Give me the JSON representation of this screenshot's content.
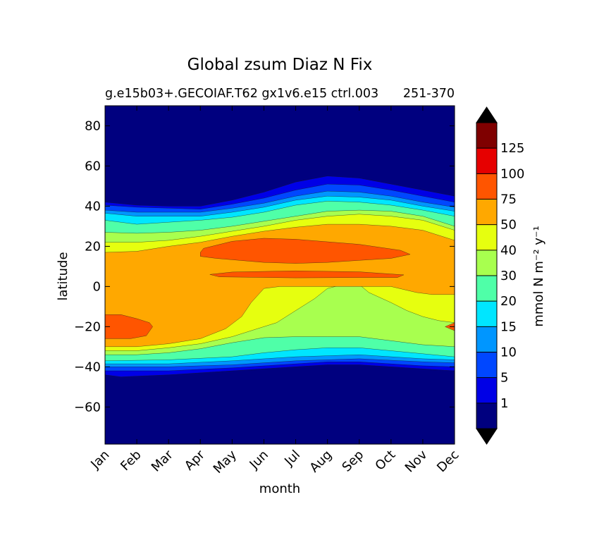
{
  "chart_data": {
    "type": "heatmap",
    "subtype": "filled-contour",
    "title": "Global zsum Diaz N Fix",
    "subtitle_left": "g.e15b03+.GECOIAF.T62 gx1v6.e15 ctrl.003",
    "subtitle_right": "251-370",
    "xlabel": "month",
    "ylabel": "latitude",
    "x_tick_labels": [
      "Jan",
      "Feb",
      "Mar",
      "Apr",
      "May",
      "Jun",
      "Jul",
      "Aug",
      "Sep",
      "Oct",
      "Nov",
      "Dec"
    ],
    "x_tick_values": [
      1,
      2,
      3,
      4,
      5,
      6,
      7,
      8,
      9,
      10,
      11,
      12
    ],
    "xlim": [
      1,
      12
    ],
    "y_tick_values": [
      -60,
      -40,
      -20,
      0,
      20,
      40,
      60,
      80
    ],
    "y_tick_labels": [
      "−60",
      "−40",
      "−20",
      "0",
      "20",
      "40",
      "60",
      "80"
    ],
    "ylim": [
      -78.5,
      90
    ],
    "colorbar": {
      "label": "mmol N m⁻² y⁻¹",
      "boundaries": [
        0,
        1,
        5,
        10,
        15,
        20,
        30,
        40,
        50,
        75,
        100,
        125,
        150
      ],
      "tick_labels": [
        "1",
        "5",
        "10",
        "15",
        "20",
        "30",
        "40",
        "50",
        "75",
        "100",
        "125"
      ],
      "colors": [
        "#00007f",
        "#0000e6",
        "#0047ff",
        "#0096ff",
        "#00e6ff",
        "#4fffa8",
        "#a8ff4f",
        "#e6ff0f",
        "#ffa800",
        "#ff5500",
        "#e60000",
        "#7f0000"
      ],
      "extend": "both",
      "under_color": "#000000",
      "over_color": "#000000"
    },
    "level_polygons": [
      {
        "level": 1,
        "points": [
          [
            1,
            -44
          ],
          [
            1.5,
            -45
          ],
          [
            3,
            -44
          ],
          [
            5,
            -42
          ],
          [
            7,
            -40
          ],
          [
            8,
            -39
          ],
          [
            9,
            -39
          ],
          [
            10,
            -40
          ],
          [
            11,
            -41
          ],
          [
            12,
            -42
          ],
          [
            12,
            45
          ],
          [
            11,
            48
          ],
          [
            10,
            51
          ],
          [
            9,
            54
          ],
          [
            8,
            55
          ],
          [
            7,
            52
          ],
          [
            6,
            47
          ],
          [
            5,
            43
          ],
          [
            4,
            40
          ],
          [
            3,
            40
          ],
          [
            2,
            40.5
          ],
          [
            1,
            42
          ]
        ]
      },
      {
        "level": 5,
        "points": [
          [
            1,
            -42
          ],
          [
            3,
            -42
          ],
          [
            5,
            -40.5
          ],
          [
            7,
            -38.5
          ],
          [
            8,
            -37.5
          ],
          [
            9,
            -37.5
          ],
          [
            10,
            -38.5
          ],
          [
            11,
            -39.5
          ],
          [
            12,
            -40
          ],
          [
            12,
            42
          ],
          [
            11,
            45
          ],
          [
            10,
            48
          ],
          [
            9,
            50.5
          ],
          [
            8,
            51
          ],
          [
            7,
            48
          ],
          [
            6,
            44
          ],
          [
            5,
            41
          ],
          [
            4,
            38.5
          ],
          [
            3,
            39
          ],
          [
            2,
            39.5
          ],
          [
            1,
            40.5
          ]
        ]
      },
      {
        "level": 10,
        "points": [
          [
            1,
            -40
          ],
          [
            3,
            -40
          ],
          [
            5,
            -39
          ],
          [
            7,
            -37
          ],
          [
            9,
            -36
          ],
          [
            11,
            -37.5
          ],
          [
            12,
            -38
          ],
          [
            12,
            39.5
          ],
          [
            11,
            42
          ],
          [
            10,
            45
          ],
          [
            9,
            47
          ],
          [
            8,
            47.5
          ],
          [
            7,
            45
          ],
          [
            6,
            41.5
          ],
          [
            5,
            39
          ],
          [
            4,
            37
          ],
          [
            3,
            37
          ],
          [
            2,
            37
          ],
          [
            1,
            38
          ]
        ]
      },
      {
        "level": 15,
        "points": [
          [
            1,
            -38.5
          ],
          [
            3,
            -38.5
          ],
          [
            5,
            -37
          ],
          [
            7,
            -35
          ],
          [
            9,
            -34
          ],
          [
            11,
            -36
          ],
          [
            12,
            -36.5
          ],
          [
            12,
            37.5
          ],
          [
            11,
            40
          ],
          [
            10,
            43
          ],
          [
            9,
            44.5
          ],
          [
            8,
            45
          ],
          [
            7,
            43
          ],
          [
            6,
            39.5
          ],
          [
            5,
            37
          ],
          [
            4,
            35
          ],
          [
            3,
            35
          ],
          [
            2,
            35
          ],
          [
            1,
            36.5
          ]
        ]
      },
      {
        "level": 20,
        "points": [
          [
            1,
            -37
          ],
          [
            3,
            -36.5
          ],
          [
            5,
            -35
          ],
          [
            6,
            -33
          ],
          [
            7,
            -31.5
          ],
          [
            8,
            -30.5
          ],
          [
            9,
            -30.5
          ],
          [
            10,
            -32
          ],
          [
            11,
            -33.5
          ],
          [
            12,
            -35
          ],
          [
            12,
            35
          ],
          [
            11,
            38
          ],
          [
            10,
            40.5
          ],
          [
            9,
            42
          ],
          [
            8,
            42.5
          ],
          [
            7,
            40.5
          ],
          [
            6,
            37
          ],
          [
            5,
            34.5
          ],
          [
            4,
            33
          ],
          [
            3,
            32
          ],
          [
            2,
            31
          ],
          [
            1,
            33
          ]
        ]
      },
      {
        "level": 30,
        "points": [
          [
            1,
            -34
          ],
          [
            2,
            -34
          ],
          [
            3,
            -33
          ],
          [
            4,
            -31
          ],
          [
            5,
            -28
          ],
          [
            6,
            -25.5
          ],
          [
            7,
            -25
          ],
          [
            8,
            -25
          ],
          [
            9,
            -25
          ],
          [
            10,
            -27
          ],
          [
            11,
            -29
          ],
          [
            12,
            -30
          ],
          [
            12,
            30
          ],
          [
            11,
            35
          ],
          [
            10,
            37.5
          ],
          [
            9,
            38
          ],
          [
            8,
            37.5
          ],
          [
            7,
            35
          ],
          [
            6,
            32.5
          ],
          [
            5,
            30
          ],
          [
            4,
            28
          ],
          [
            3,
            27
          ],
          [
            2,
            26.5
          ],
          [
            1,
            27
          ]
        ]
      },
      {
        "level": 40,
        "points": [
          [
            1,
            -32
          ],
          [
            2,
            -32
          ],
          [
            3,
            -30.5
          ],
          [
            4,
            -28.5
          ],
          [
            5,
            -25
          ],
          [
            5.8,
            -21
          ],
          [
            6.4,
            -18
          ],
          [
            7,
            -12
          ],
          [
            7.6,
            -6
          ],
          [
            8,
            -1
          ],
          [
            8.5,
            1
          ],
          [
            9,
            1
          ],
          [
            9.3,
            -3
          ],
          [
            10,
            -8
          ],
          [
            10.5,
            -12
          ],
          [
            11,
            -15
          ],
          [
            11.5,
            -17
          ],
          [
            12,
            -18
          ],
          [
            12,
            28
          ],
          [
            11,
            33
          ],
          [
            10,
            35
          ],
          [
            9,
            36
          ],
          [
            8,
            35
          ],
          [
            7,
            33
          ],
          [
            6,
            30
          ],
          [
            5,
            27.5
          ],
          [
            4,
            25
          ],
          [
            3,
            23
          ],
          [
            2,
            22
          ],
          [
            1,
            22
          ]
        ]
      },
      {
        "level": 50,
        "points": [
          [
            1,
            -30
          ],
          [
            2,
            -30
          ],
          [
            3,
            -28.5
          ],
          [
            4,
            -26
          ],
          [
            4.8,
            -21
          ],
          [
            5.3,
            -15
          ],
          [
            5.6,
            -8
          ],
          [
            6,
            -1
          ],
          [
            6.5,
            0
          ],
          [
            7,
            0
          ],
          [
            8,
            0
          ],
          [
            9,
            0
          ],
          [
            10,
            0
          ],
          [
            10.8,
            -3
          ],
          [
            11.3,
            -4
          ],
          [
            11.6,
            -4
          ],
          [
            12,
            -4
          ],
          [
            12,
            23
          ],
          [
            11,
            28
          ],
          [
            10,
            30
          ],
          [
            9,
            31
          ],
          [
            8,
            31
          ],
          [
            7,
            29.5
          ],
          [
            6,
            27.5
          ],
          [
            5,
            25
          ],
          [
            4,
            22
          ],
          [
            3,
            20
          ],
          [
            2,
            17.5
          ],
          [
            1,
            17
          ]
        ]
      },
      {
        "level": 75,
        "points": [
          [
            1,
            -26
          ],
          [
            1.8,
            -26
          ],
          [
            2.3,
            -24.5
          ],
          [
            2.5,
            -20
          ],
          [
            2.4,
            -18
          ],
          [
            2,
            -16
          ],
          [
            1.5,
            -14
          ],
          [
            1,
            -14
          ]
        ]
      },
      {
        "level": 75,
        "points": [
          [
            12,
            -22
          ],
          [
            11.7,
            -20
          ],
          [
            12,
            -18
          ]
        ]
      },
      {
        "level": 75,
        "points": [
          [
            4,
            15
          ],
          [
            4.5,
            14
          ],
          [
            6,
            12
          ],
          [
            7,
            11.5
          ],
          [
            8,
            12
          ],
          [
            9,
            13
          ],
          [
            10,
            14
          ],
          [
            10.6,
            16
          ],
          [
            10.3,
            18
          ],
          [
            9,
            21
          ],
          [
            7,
            23.5
          ],
          [
            6,
            24
          ],
          [
            5,
            22.5
          ],
          [
            4.1,
            19
          ],
          [
            4,
            17
          ]
        ]
      },
      {
        "level": 75,
        "points": [
          [
            4.3,
            6
          ],
          [
            4.6,
            4.8
          ],
          [
            7,
            4.3
          ],
          [
            9,
            4.5
          ],
          [
            10.2,
            4.5
          ],
          [
            10.4,
            5.8
          ],
          [
            9,
            7.3
          ],
          [
            7,
            7.8
          ],
          [
            5,
            7.2
          ]
        ]
      }
    ]
  }
}
